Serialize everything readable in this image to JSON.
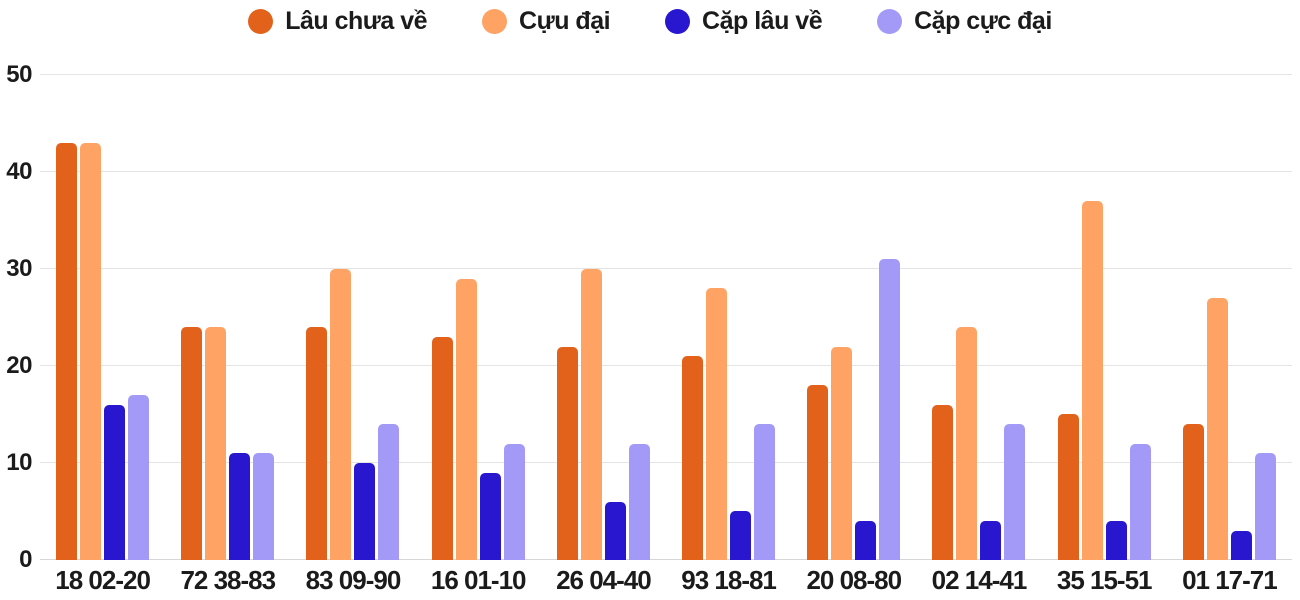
{
  "chart_data": {
    "type": "bar",
    "title": "",
    "xlabel": "",
    "ylabel": "",
    "ylim": [
      0,
      50
    ],
    "yticks": [
      0,
      10,
      20,
      30,
      40,
      50
    ],
    "grid": true,
    "legend_position": "top",
    "categories": [
      "18 02-20",
      "72 38-83",
      "83 09-90",
      "16 01-10",
      "26 04-40",
      "93 18-81",
      "20 08-80",
      "02 14-41",
      "35 15-51",
      "01 17-71"
    ],
    "series": [
      {
        "name": "Lâu chưa về",
        "color": "#E2621B",
        "values": [
          43,
          24,
          24,
          23,
          22,
          21,
          18,
          16,
          15,
          14
        ]
      },
      {
        "name": "Cựu đại",
        "color": "#FFA365",
        "values": [
          43,
          24,
          30,
          29,
          30,
          28,
          22,
          24,
          37,
          27
        ]
      },
      {
        "name": "Cặp lâu về",
        "color": "#2817CE",
        "values": [
          16,
          11,
          10,
          9,
          6,
          5,
          4,
          4,
          4,
          3
        ]
      },
      {
        "name": "Cặp cực đại",
        "color": "#A39AF8",
        "values": [
          17,
          11,
          14,
          12,
          12,
          14,
          31,
          14,
          12,
          11
        ]
      }
    ]
  },
  "colors": {
    "background": "#FFFFFF",
    "gridline": "#E4E4E4",
    "baseline": "#D6D6D6",
    "axis_text": "#1B1B1B"
  }
}
